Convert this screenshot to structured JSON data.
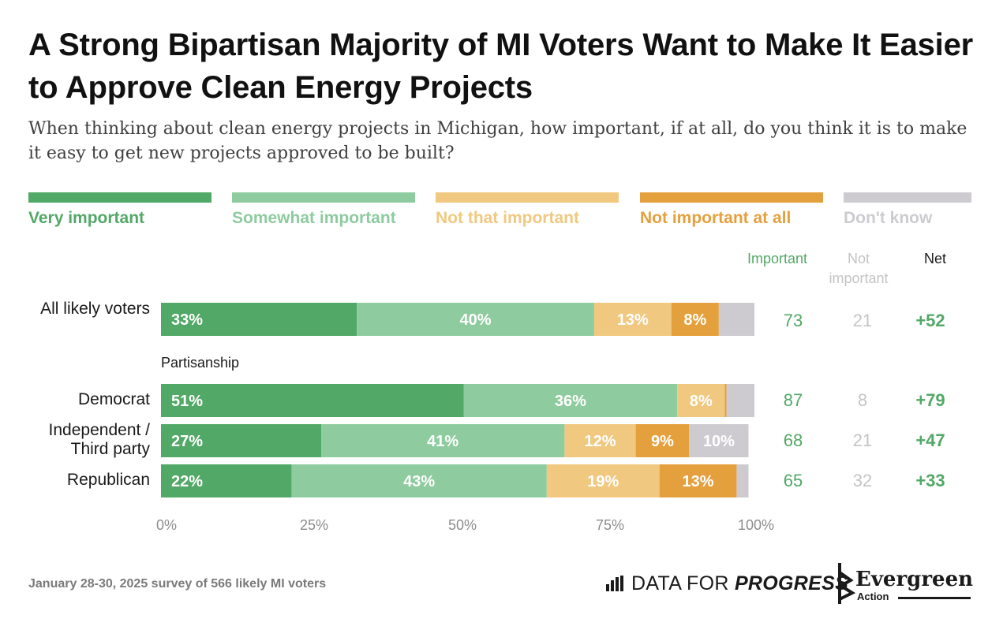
{
  "title": "A Strong Bipartisan Majority of MI Voters Want to Make It Easier to Approve Clean Energy Projects",
  "subtitle": "When thinking about clean energy projects in Michigan, how important, if at all, do you think it is to make it easy to get new projects approved to be built?",
  "legend": [
    {
      "label": "Very important",
      "color": "#52a866"
    },
    {
      "label": "Somewhat important",
      "color": "#8ecb9f"
    },
    {
      "label": "Not that important",
      "color": "#f0c87f"
    },
    {
      "label": "Not important at all",
      "color": "#e5a03e"
    },
    {
      "label": "Don't know",
      "color": "#cdcbd0"
    }
  ],
  "columns": {
    "important": "Important",
    "not_important": "Not important",
    "net": "Net"
  },
  "section_label": "Partisanship",
  "footer": "January 28-30, 2025 survey of 566 likely MI voters",
  "logos": {
    "dfp_plain": "DATA FOR",
    "dfp_bold": "PROGRESS",
    "evergreen": "Evergreen",
    "evergreen_sub": "Action"
  },
  "chart_data": {
    "type": "bar",
    "orientation": "horizontal",
    "stacked": true,
    "categories": [
      "All likely voters",
      "Democrat",
      "Independent / Third party",
      "Republican"
    ],
    "series": [
      {
        "name": "Very important",
        "values": [
          33,
          51,
          27,
          22
        ],
        "labels": [
          "33%",
          "51%",
          "27%",
          "22%"
        ]
      },
      {
        "name": "Somewhat important",
        "values": [
          40,
          36,
          41,
          43
        ],
        "labels": [
          "40%",
          "36%",
          "41%",
          "43%"
        ]
      },
      {
        "name": "Not that important",
        "values": [
          13,
          8,
          12,
          19
        ],
        "labels": [
          "13%",
          "8%",
          "12%",
          "19%"
        ]
      },
      {
        "name": "Not important at all",
        "values": [
          8,
          0.3,
          9,
          13
        ],
        "labels": [
          "8%",
          "",
          "9%",
          "13%"
        ]
      },
      {
        "name": "Don't know",
        "values": [
          6,
          4.7,
          10,
          2
        ],
        "labels": [
          "",
          "",
          "10%",
          ""
        ]
      }
    ],
    "important": [
      "73",
      "87",
      "68",
      "65"
    ],
    "not_important": [
      "21",
      "8",
      "21",
      "32"
    ],
    "net": [
      "+52",
      "+79",
      "+47",
      "+33"
    ],
    "xlim": [
      0,
      100
    ],
    "xticks": [
      "0%",
      "25%",
      "50%",
      "75%",
      "100%"
    ]
  }
}
